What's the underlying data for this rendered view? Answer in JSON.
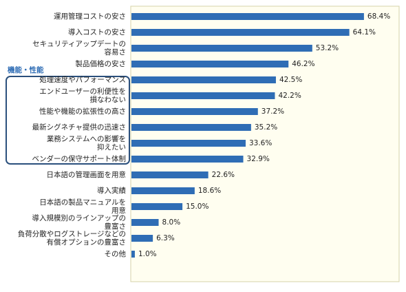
{
  "chart_data": {
    "type": "bar",
    "orientation": "horizontal",
    "categories": [
      "運用管理コストの安さ",
      "導入コストの安さ",
      "セキュリティアップデートの\n容易さ",
      "製品価格の安さ",
      "処理速度やパフォーマンス",
      "エンドユーザーの利便性を\n損なわない",
      "性能や機能の拡張性の高さ",
      "最新シグネチャ提供の迅速さ",
      "業務システムへの影響を\n抑えたい",
      "ベンダーの保守サポート体制",
      "日本語の管理画面を用意",
      "導入実績",
      "日本語の製品マニュアルを\n用意",
      "導入規模別のラインアップの\n豊富さ",
      "負荷分散やログストレージなどの\n有償オプションの豊富さ",
      "その他"
    ],
    "values": [
      68.4,
      64.1,
      53.2,
      46.2,
      42.5,
      42.2,
      37.2,
      35.2,
      33.6,
      32.9,
      22.6,
      18.6,
      15.0,
      8.0,
      6.3,
      1.0
    ],
    "value_labels": [
      "68.4%",
      "64.1%",
      "53.2%",
      "46.2%",
      "42.5%",
      "42.2%",
      "37.2%",
      "35.2%",
      "33.6%",
      "32.9%",
      "22.6%",
      "18.6%",
      "15.0%",
      "8.0%",
      "6.3%",
      "1.0%"
    ],
    "color": "#2f6db5",
    "annotation": "機能・性能"
  }
}
